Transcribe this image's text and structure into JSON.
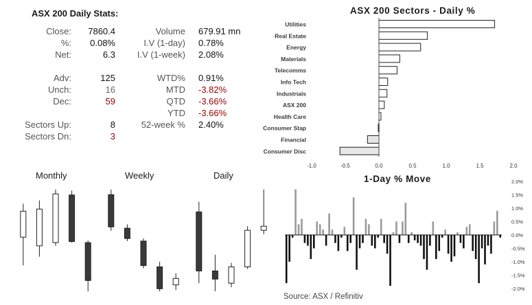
{
  "stats": {
    "title": "ASX 200 Daily Stats:",
    "left_rows": [
      {
        "label": "Close:",
        "value": "7860.4",
        "tone": "normal"
      },
      {
        "label": "%:",
        "value": "0.08%",
        "tone": "normal"
      },
      {
        "label": "Net:",
        "value": "6.3",
        "tone": "normal"
      },
      {
        "label": "Adv:",
        "value": "125",
        "tone": "normal"
      },
      {
        "label": "Unch:",
        "value": "16",
        "tone": "grey"
      },
      {
        "label": "Dec:",
        "value": "59",
        "tone": "neg"
      },
      {
        "label": "Sectors Up:",
        "value": "8",
        "tone": "normal"
      },
      {
        "label": "Sectors Dn:",
        "value": "3",
        "tone": "neg"
      }
    ],
    "right_rows": [
      {
        "label": "Volume",
        "value": "679.91 mn",
        "tone": "normal"
      },
      {
        "label": "I.V (1-day)",
        "value": "0.78%",
        "tone": "normal"
      },
      {
        "label": "I.V (1-week)",
        "value": "2.08%",
        "tone": "normal"
      },
      {
        "label": "WTD%",
        "value": "0.91%",
        "tone": "normal"
      },
      {
        "label": "MTD",
        "value": "-3.82%",
        "tone": "neg"
      },
      {
        "label": "QTD",
        "value": "-3.66%",
        "tone": "neg"
      },
      {
        "label": "YTD",
        "value": "-3.66%",
        "tone": "neg"
      },
      {
        "label": "52-week %",
        "value": "2.40%",
        "tone": "normal"
      }
    ]
  },
  "candle_titles": {
    "monthly": "Monthly",
    "weekly": "Weekly",
    "daily": "Daily"
  },
  "source": "Source: ASX / Refinitiv",
  "colors": {
    "bar_fill": "#ffffff",
    "bar_neg_fill": "#e6e6e6",
    "bar_stroke": "#222222",
    "up_bar": "#9a9a9a",
    "down_bar": "#111111",
    "neg_text": "#a30000"
  },
  "chart_data": [
    {
      "type": "bar",
      "orientation": "horizontal",
      "title": "ASX 200 Sectors - Daily %",
      "categories": [
        "Utilities",
        "Real Estate",
        "Energy",
        "Materials",
        "Telecomms",
        "Info Tech",
        "Industrials",
        "ASX 200",
        "Health Care",
        "Consumer Stap",
        "Financial",
        "Consumer Disc"
      ],
      "values": [
        1.72,
        0.72,
        0.62,
        0.31,
        0.27,
        0.13,
        0.12,
        0.08,
        0.03,
        -0.01,
        -0.17,
        -0.58
      ],
      "xlim": [
        -1.0,
        2.0
      ],
      "xticks": [
        "-1.0",
        "-0.5",
        "0.0",
        "0.5",
        "1.0",
        "1.5",
        "2.0"
      ],
      "grid": false
    },
    {
      "type": "candlestick",
      "title": "Monthly",
      "ohlc": [
        {
          "open": 7380,
          "high": 7690,
          "low": 7120,
          "close": 7620
        },
        {
          "open": 7300,
          "high": 7720,
          "low": 7200,
          "close": 7640
        },
        {
          "open": 7330,
          "high": 7820,
          "low": 7300,
          "close": 7780
        },
        {
          "open": 7770,
          "high": 7810,
          "low": 7330,
          "close": 7340
        },
        {
          "open": 7330,
          "high": 7350,
          "low": 6880,
          "close": 6980
        }
      ]
    },
    {
      "type": "candlestick",
      "title": "Weekly",
      "ohlc": [
        {
          "open": 7900,
          "high": 7940,
          "low": 7620,
          "close": 7650
        },
        {
          "open": 7640,
          "high": 7670,
          "low": 7540,
          "close": 7560
        },
        {
          "open": 7540,
          "high": 7560,
          "low": 7330,
          "close": 7350
        },
        {
          "open": 7340,
          "high": 7380,
          "low": 7150,
          "close": 7170
        },
        {
          "open": 7200,
          "high": 7290,
          "low": 7160,
          "close": 7250
        }
      ]
    },
    {
      "type": "candlestick",
      "title": "Daily",
      "ohlc": [
        {
          "open": 7850,
          "high": 7900,
          "low": 7500,
          "close": 7560
        },
        {
          "open": 7560,
          "high": 7640,
          "low": 7460,
          "close": 7520
        },
        {
          "open": 7500,
          "high": 7600,
          "low": 7480,
          "close": 7580
        },
        {
          "open": 7580,
          "high": 7780,
          "low": 7570,
          "close": 7760
        },
        {
          "open": 7760,
          "high": 7960,
          "low": 7740,
          "close": 7780
        }
      ]
    },
    {
      "type": "bar",
      "title": "1-Day % Move",
      "ylim": [
        -2.0,
        2.0
      ],
      "yticks": [
        "2.0%",
        "1.5%",
        "1.0%",
        "0.5%",
        "0.0%",
        "-0.5%",
        "-1.0%",
        "-1.5%",
        "-2.0%"
      ],
      "values": [
        -1.8,
        -1.0,
        -0.1,
        1.7,
        0.4,
        0.6,
        -0.3,
        -0.4,
        -0.9,
        -0.5,
        0.5,
        0.4,
        0.2,
        -0.4,
        0.8,
        0.2,
        -0.3,
        -0.6,
        -0.1,
        0.3,
        -0.6,
        -0.3,
        1.4,
        -1.3,
        -0.5,
        -0.3,
        0.6,
        0.4,
        -0.4,
        -0.5,
        -0.1,
        0.6,
        -0.3,
        -0.7,
        -1.9,
        0.1,
        0.5,
        -0.3,
        0.5,
        1.2,
        -0.3,
        0.1,
        -0.2,
        -0.3,
        -0.4,
        -0.9,
        -1.3,
        -0.4,
        0.5,
        -0.9,
        -0.6,
        -0.1,
        0.2,
        -0.7,
        -1.0,
        -0.8,
        0.1,
        -0.3,
        -0.5,
        0.3,
        0.4,
        -0.6,
        -0.9,
        -1.8,
        -0.5,
        -1.1,
        -0.4,
        -0.7,
        0.5,
        0.9,
        -0.1
      ]
    }
  ]
}
